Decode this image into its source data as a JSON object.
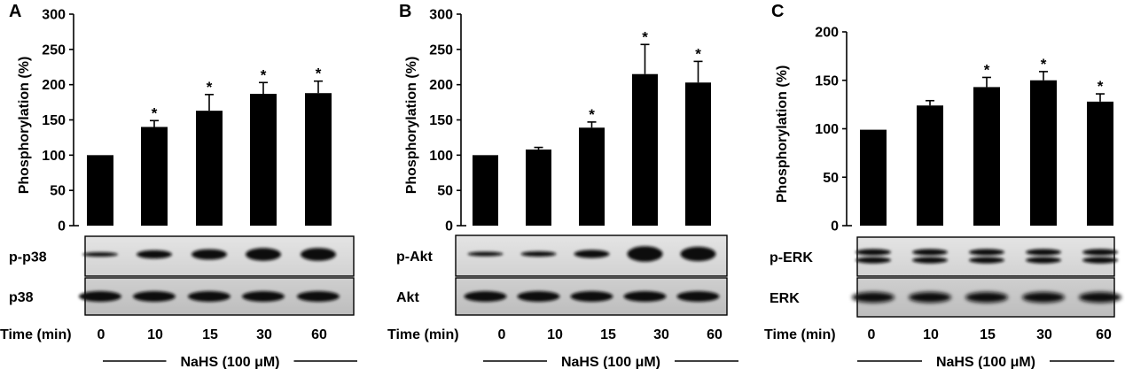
{
  "chart_data": [
    {
      "type": "bar",
      "panel_label": "A",
      "ylabel": "Phosphorylation (%)",
      "ylim": [
        0,
        300
      ],
      "yticks": [
        0,
        50,
        100,
        150,
        200,
        250,
        300
      ],
      "categories": [
        "0",
        "10",
        "15",
        "30",
        "60"
      ],
      "values": [
        100,
        140,
        163,
        187,
        188
      ],
      "errors": [
        0,
        9,
        23,
        16,
        17
      ],
      "significant": [
        false,
        true,
        true,
        true,
        true
      ],
      "significance_marker": "*",
      "blots": [
        "p-p38",
        "p38"
      ],
      "xlabel": "Time (min)",
      "treatment": "NaHS (100 μM)"
    },
    {
      "type": "bar",
      "panel_label": "B",
      "ylabel": "Phosphorylation (%)",
      "ylim": [
        0,
        300
      ],
      "yticks": [
        0,
        50,
        100,
        150,
        200,
        250,
        300
      ],
      "categories": [
        "0",
        "10",
        "15",
        "30",
        "60"
      ],
      "values": [
        100,
        108,
        139,
        215,
        203
      ],
      "errors": [
        0,
        3,
        8,
        42,
        30
      ],
      "significant": [
        false,
        false,
        true,
        true,
        true
      ],
      "significance_marker": "*",
      "blots": [
        "p-Akt",
        "Akt"
      ],
      "xlabel": "Time (min)",
      "treatment": "NaHS (100 μM)"
    },
    {
      "type": "bar",
      "panel_label": "C",
      "ylabel": "Phosphorylation (%)",
      "ylim": [
        0,
        200
      ],
      "yticks": [
        0,
        50,
        100,
        150,
        200
      ],
      "categories": [
        "0",
        "10",
        "15",
        "30",
        "60"
      ],
      "values": [
        99,
        124,
        143,
        150,
        128
      ],
      "errors": [
        0,
        5,
        10,
        9,
        8
      ],
      "significant": [
        false,
        false,
        true,
        true,
        true
      ],
      "significance_marker": "*",
      "blots": [
        "p-ERK",
        "ERK"
      ],
      "xlabel": "Time (min)",
      "treatment": "NaHS (100 μM)"
    }
  ]
}
